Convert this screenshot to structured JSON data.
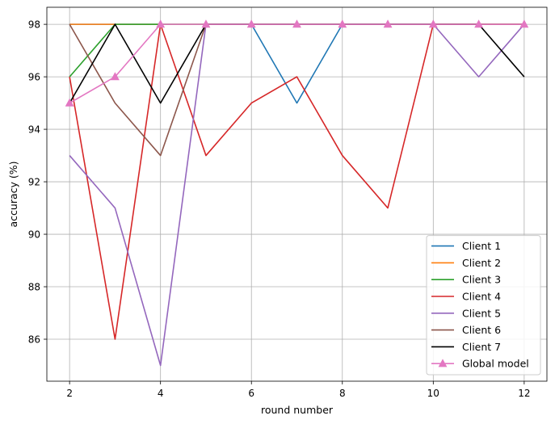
{
  "chart_data": {
    "type": "line",
    "title": "",
    "xlabel": "round number",
    "ylabel": "accuracy (%)",
    "x": [
      2,
      3,
      4,
      5,
      6,
      7,
      8,
      9,
      10,
      11,
      12
    ],
    "xlim": [
      1.5,
      12.5
    ],
    "ylim": [
      84.4,
      98.65
    ],
    "xticks": [
      2,
      4,
      6,
      8,
      10,
      12
    ],
    "yticks": [
      86,
      88,
      90,
      92,
      94,
      96,
      98
    ],
    "grid": true,
    "legend_position": "lower-right",
    "series": [
      {
        "name": "Client 1",
        "color": "#1f77b4",
        "marker": "none",
        "values": [
          98,
          98,
          98,
          98,
          98,
          95,
          98,
          98,
          98,
          98,
          98
        ]
      },
      {
        "name": "Client 2",
        "color": "#ff7f0e",
        "marker": "none",
        "values": [
          98,
          98,
          98,
          98,
          98,
          98,
          98,
          98,
          98,
          98,
          98
        ]
      },
      {
        "name": "Client 3",
        "color": "#2ca02c",
        "marker": "none",
        "values": [
          96,
          98,
          98,
          98,
          98,
          98,
          98,
          98,
          98,
          98,
          98
        ]
      },
      {
        "name": "Client 4",
        "color": "#d62728",
        "marker": "none",
        "values": [
          96,
          86,
          98,
          93,
          95,
          96,
          93,
          91,
          98,
          98,
          98
        ]
      },
      {
        "name": "Client 5",
        "color": "#9467bd",
        "marker": "none",
        "values": [
          93,
          91,
          85,
          98,
          98,
          98,
          98,
          98,
          98,
          96,
          98
        ]
      },
      {
        "name": "Client 6",
        "color": "#8c564b",
        "marker": "none",
        "values": [
          98,
          95,
          93,
          98,
          98,
          98,
          98,
          98,
          98,
          98,
          98
        ]
      },
      {
        "name": "Client 7",
        "color": "#000000",
        "marker": "none",
        "values": [
          95,
          98,
          95,
          98,
          98,
          98,
          98,
          98,
          98,
          98,
          96
        ]
      },
      {
        "name": "Global model",
        "color": "#e377c2",
        "marker": "triangle",
        "values": [
          95,
          96,
          98,
          98,
          98,
          98,
          98,
          98,
          98,
          98,
          98
        ]
      }
    ]
  }
}
